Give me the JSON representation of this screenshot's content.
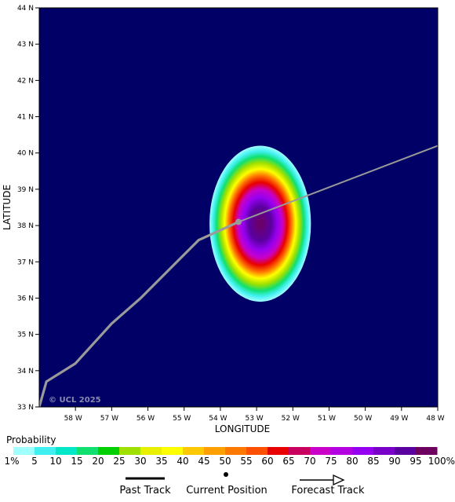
{
  "chart_data": {
    "type": "heatmap",
    "xlabel": "LONGITUDE",
    "ylabel": "LATITUDE",
    "xlim": [
      -59,
      -48
    ],
    "ylim": [
      33,
      44
    ],
    "x_ticks": [
      "58 W",
      "57 W",
      "56 W",
      "55 W",
      "54 W",
      "53 W",
      "52 W",
      "51 W",
      "50 W",
      "49 W",
      "48 W"
    ],
    "x_tick_values": [
      -58,
      -57,
      -56,
      -55,
      -54,
      -53,
      -52,
      -51,
      -50,
      -49,
      -48
    ],
    "y_ticks": [
      "33 N",
      "34 N",
      "35 N",
      "36 N",
      "37 N",
      "38 N",
      "39 N",
      "40 N",
      "41 N",
      "42 N",
      "43 N",
      "44 N"
    ],
    "y_tick_values": [
      33,
      34,
      35,
      36,
      37,
      38,
      39,
      40,
      41,
      42,
      43,
      44
    ],
    "background_color": "#000066",
    "past_track": [
      [
        -59.0,
        33.0
      ],
      [
        -58.8,
        33.7
      ],
      [
        -58.0,
        34.2
      ],
      [
        -57.0,
        35.3
      ],
      [
        -56.2,
        36.0
      ],
      [
        -55.2,
        37.0
      ],
      [
        -54.6,
        37.6
      ],
      [
        -53.5,
        38.1
      ]
    ],
    "current_position": [
      -53.5,
      38.1
    ],
    "forecast_track": [
      [
        -53.5,
        38.1
      ],
      [
        -48.0,
        40.2
      ]
    ],
    "probability_field": {
      "center": [
        -52.8,
        38.0
      ],
      "extent_lon": [
        -54.3,
        -51.5
      ],
      "extent_lat": [
        35.9,
        40.2
      ]
    },
    "copyright": "© UCL 2025"
  },
  "legend": {
    "title": "Probability",
    "labels": [
      "1%",
      "5",
      "10",
      "15",
      "20",
      "25",
      "30",
      "35",
      "40",
      "45",
      "50",
      "55",
      "60",
      "65",
      "70",
      "75",
      "80",
      "85",
      "90",
      "95",
      "100%"
    ],
    "colors": [
      "#a0ffff",
      "#40f0f0",
      "#00e8c8",
      "#10e070",
      "#00d000",
      "#a0e000",
      "#e8f000",
      "#ffff00",
      "#ffc800",
      "#ffa000",
      "#ff7800",
      "#ff5000",
      "#e80000",
      "#c80060",
      "#c800c8",
      "#b400e0",
      "#9600f0",
      "#7800c8",
      "#5a00a0",
      "#6e0060"
    ]
  },
  "key": {
    "past_track": "Past Track",
    "current_position": "Current Position",
    "forecast_track": "Forecast Track"
  }
}
